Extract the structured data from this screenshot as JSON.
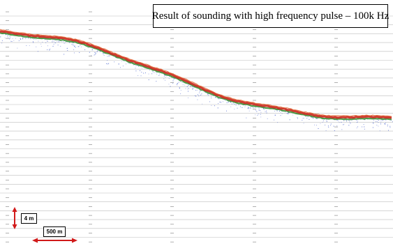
{
  "title": "Result of sounding with high frequency pulse – 100k Hz",
  "scale": {
    "vertical_label": "4 m",
    "horizontal_label": "500 m"
  },
  "colors": {
    "background": "#ffffff",
    "grid_line": "#bdbdbd",
    "echo_core": "#c8261b",
    "echo_edge": "#2f8a2a",
    "echo_scatter": "#3a55c8",
    "scale_arrow": "#d11a1a"
  }
}
